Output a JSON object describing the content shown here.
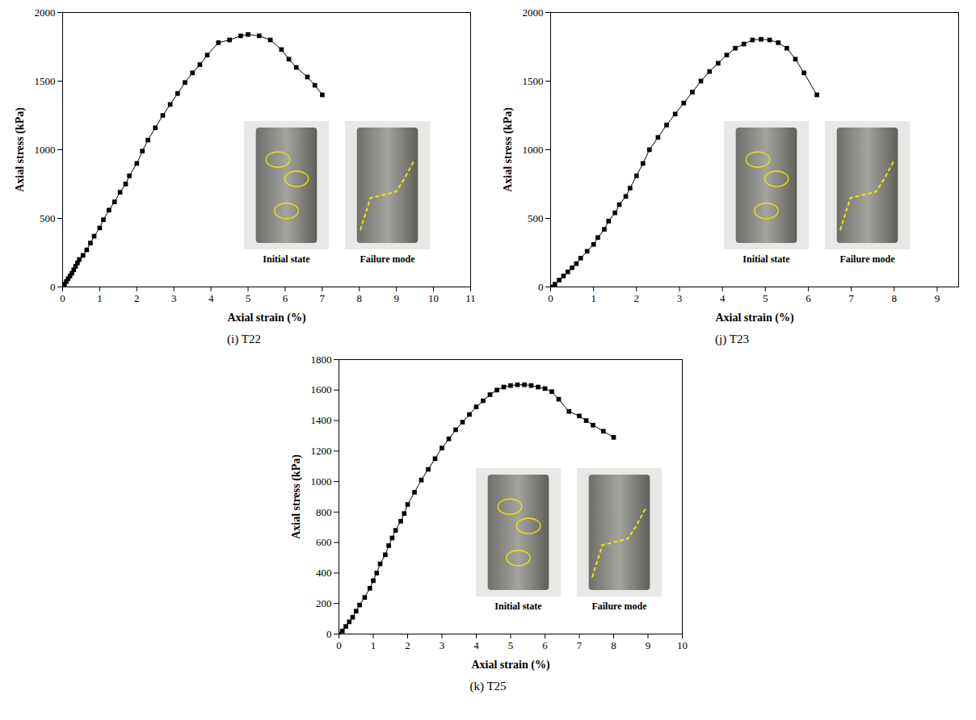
{
  "chart_data": [
    {
      "type": "line",
      "title": "(i) T22",
      "x_label": "Axial strain (%)",
      "y_label": "Axial stress (kPa)",
      "x": [
        0,
        0.05,
        0.1,
        0.15,
        0.2,
        0.25,
        0.3,
        0.35,
        0.4,
        0.45,
        0.55,
        0.65,
        0.75,
        0.85,
        1.0,
        1.1,
        1.25,
        1.4,
        1.55,
        1.7,
        1.8,
        2.0,
        2.15,
        2.3,
        2.5,
        2.7,
        2.9,
        3.1,
        3.3,
        3.5,
        3.7,
        3.9,
        4.2,
        4.5,
        4.8,
        5.0,
        5.3,
        5.6,
        5.9,
        6.1,
        6.3,
        6.6,
        6.8,
        7.0
      ],
      "values": [
        0,
        20,
        40,
        60,
        80,
        100,
        125,
        150,
        175,
        200,
        230,
        270,
        320,
        370,
        430,
        490,
        560,
        620,
        690,
        750,
        810,
        900,
        990,
        1070,
        1160,
        1250,
        1330,
        1410,
        1490,
        1560,
        1620,
        1690,
        1780,
        1800,
        1830,
        1840,
        1830,
        1800,
        1730,
        1660,
        1600,
        1530,
        1470,
        1400
      ],
      "xlim": [
        0,
        11
      ],
      "ylim": [
        0,
        2000
      ],
      "xticks": [
        0,
        1,
        2,
        3,
        4,
        5,
        6,
        7,
        8,
        9,
        10,
        11
      ],
      "yticks": [
        0,
        500,
        1000,
        1500,
        2000
      ],
      "color": "#000000",
      "marker": "square",
      "line_style": "solid",
      "annotations": [
        "Initial state",
        "Failure mode"
      ]
    },
    {
      "type": "line",
      "title": "(j) T23",
      "x_label": "Axial strain (%)",
      "y_label": "Axial stress (kPa)",
      "x": [
        0,
        0.1,
        0.2,
        0.3,
        0.4,
        0.5,
        0.6,
        0.7,
        0.85,
        1.0,
        1.1,
        1.25,
        1.35,
        1.5,
        1.6,
        1.75,
        1.85,
        2.0,
        2.15,
        2.3,
        2.5,
        2.7,
        2.9,
        3.1,
        3.3,
        3.5,
        3.7,
        3.9,
        4.1,
        4.3,
        4.5,
        4.7,
        4.9,
        5.1,
        5.3,
        5.5,
        5.7,
        5.9,
        6.2
      ],
      "values": [
        0,
        20,
        50,
        80,
        110,
        140,
        170,
        210,
        260,
        310,
        360,
        420,
        480,
        540,
        600,
        660,
        720,
        810,
        900,
        1000,
        1090,
        1180,
        1260,
        1340,
        1420,
        1500,
        1570,
        1630,
        1690,
        1740,
        1770,
        1800,
        1805,
        1800,
        1780,
        1740,
        1660,
        1560,
        1400
      ],
      "xlim": [
        0,
        9.5
      ],
      "ylim": [
        0,
        2000
      ],
      "xticks": [
        0,
        1,
        2,
        3,
        4,
        5,
        6,
        7,
        8,
        9
      ],
      "yticks": [
        0,
        500,
        1000,
        1500,
        2000
      ],
      "color": "#000000",
      "marker": "square",
      "line_style": "solid",
      "annotations": [
        "Initial state",
        "Failure mode"
      ]
    },
    {
      "type": "line",
      "title": "(k) T25",
      "x_label": "Axial strain (%)",
      "y_label": "Axial stress (kPa)",
      "x": [
        0,
        0.1,
        0.2,
        0.3,
        0.4,
        0.5,
        0.6,
        0.75,
        0.9,
        1.0,
        1.1,
        1.2,
        1.35,
        1.45,
        1.55,
        1.65,
        1.8,
        1.9,
        2.0,
        2.2,
        2.4,
        2.6,
        2.8,
        3.0,
        3.2,
        3.4,
        3.6,
        3.8,
        4.0,
        4.2,
        4.4,
        4.6,
        4.8,
        5.0,
        5.2,
        5.4,
        5.6,
        5.8,
        6.0,
        6.2,
        6.4,
        6.7,
        7.0,
        7.2,
        7.4,
        7.7,
        8.0
      ],
      "values": [
        0,
        20,
        50,
        80,
        110,
        150,
        190,
        240,
        300,
        350,
        400,
        460,
        520,
        580,
        630,
        680,
        740,
        790,
        850,
        930,
        1010,
        1080,
        1150,
        1220,
        1280,
        1340,
        1390,
        1440,
        1490,
        1530,
        1570,
        1600,
        1620,
        1630,
        1635,
        1635,
        1630,
        1620,
        1610,
        1590,
        1540,
        1460,
        1430,
        1400,
        1370,
        1330,
        1290
      ],
      "xlim": [
        0,
        10
      ],
      "ylim": [
        0,
        1800
      ],
      "xticks": [
        0,
        1,
        2,
        3,
        4,
        5,
        6,
        7,
        8,
        9,
        10
      ],
      "yticks": [
        0,
        200,
        400,
        600,
        800,
        1000,
        1200,
        1400,
        1600,
        1800
      ],
      "color": "#000000",
      "marker": "square",
      "line_style": "solid",
      "annotations": [
        "Initial state",
        "Failure mode"
      ]
    }
  ]
}
